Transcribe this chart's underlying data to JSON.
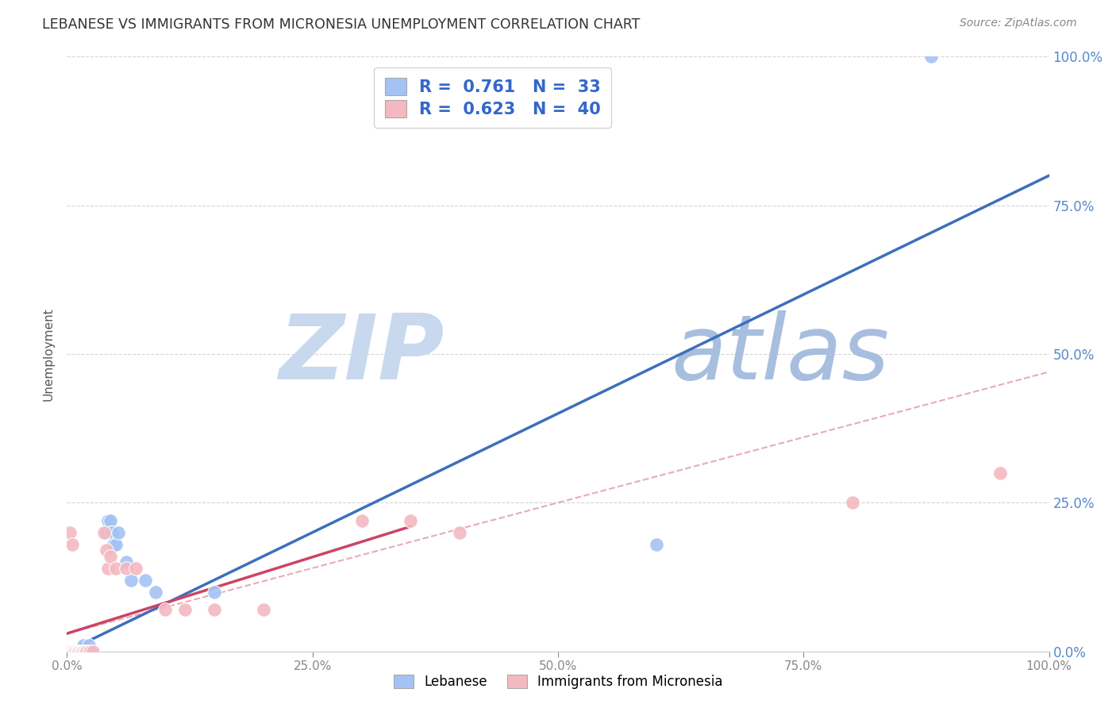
{
  "title": "LEBANESE VS IMMIGRANTS FROM MICRONESIA UNEMPLOYMENT CORRELATION CHART",
  "source": "Source: ZipAtlas.com",
  "ylabel": "Unemployment",
  "ytick_labels": [
    "0.0%",
    "25.0%",
    "50.0%",
    "75.0%",
    "100.0%"
  ],
  "ytick_values": [
    0,
    0.25,
    0.5,
    0.75,
    1.0
  ],
  "xtick_labels": [
    "0.0%",
    "25.0%",
    "50.0%",
    "75.0%",
    "100.0%"
  ],
  "xtick_values": [
    0,
    0.25,
    0.5,
    0.75,
    1.0
  ],
  "legend1_R": "0.761",
  "legend1_N": "33",
  "legend2_R": "0.623",
  "legend2_N": "40",
  "legend1_label": "Lebanese",
  "legend2_label": "Immigrants from Micronesia",
  "blue_scatter_color": "#a4c2f4",
  "pink_scatter_color": "#f4b8c1",
  "blue_line_color": "#3d6fbb",
  "pink_line_color": "#cc4466",
  "pink_dashed_color": "#dd8899",
  "blue_scatter": [
    [
      0.002,
      0.0
    ],
    [
      0.004,
      0.0
    ],
    [
      0.005,
      0.0
    ],
    [
      0.006,
      0.0
    ],
    [
      0.007,
      0.0
    ],
    [
      0.008,
      0.0
    ],
    [
      0.009,
      0.0
    ],
    [
      0.01,
      0.0
    ],
    [
      0.012,
      0.0
    ],
    [
      0.013,
      0.0
    ],
    [
      0.014,
      0.0
    ],
    [
      0.015,
      0.0
    ],
    [
      0.016,
      0.0
    ],
    [
      0.017,
      0.01
    ],
    [
      0.018,
      0.0
    ],
    [
      0.02,
      0.0
    ],
    [
      0.022,
      0.01
    ],
    [
      0.024,
      0.0
    ],
    [
      0.04,
      0.2
    ],
    [
      0.042,
      0.22
    ],
    [
      0.044,
      0.22
    ],
    [
      0.045,
      0.2
    ],
    [
      0.046,
      0.2
    ],
    [
      0.047,
      0.18
    ],
    [
      0.05,
      0.18
    ],
    [
      0.052,
      0.2
    ],
    [
      0.06,
      0.15
    ],
    [
      0.065,
      0.12
    ],
    [
      0.08,
      0.12
    ],
    [
      0.09,
      0.1
    ],
    [
      0.15,
      0.1
    ],
    [
      0.6,
      0.18
    ],
    [
      0.88,
      1.0
    ]
  ],
  "pink_scatter": [
    [
      0.002,
      0.0
    ],
    [
      0.003,
      0.0
    ],
    [
      0.004,
      0.0
    ],
    [
      0.005,
      0.0
    ],
    [
      0.006,
      0.0
    ],
    [
      0.007,
      0.0
    ],
    [
      0.008,
      0.0
    ],
    [
      0.009,
      0.0
    ],
    [
      0.01,
      0.0
    ],
    [
      0.011,
      0.0
    ],
    [
      0.012,
      0.0
    ],
    [
      0.013,
      0.0
    ],
    [
      0.014,
      0.0
    ],
    [
      0.015,
      0.0
    ],
    [
      0.016,
      0.0
    ],
    [
      0.017,
      0.0
    ],
    [
      0.018,
      0.0
    ],
    [
      0.019,
      0.0
    ],
    [
      0.02,
      0.0
    ],
    [
      0.022,
      0.0
    ],
    [
      0.024,
      0.0
    ],
    [
      0.026,
      0.0
    ],
    [
      0.038,
      0.2
    ],
    [
      0.04,
      0.17
    ],
    [
      0.042,
      0.14
    ],
    [
      0.044,
      0.16
    ],
    [
      0.05,
      0.14
    ],
    [
      0.06,
      0.14
    ],
    [
      0.07,
      0.14
    ],
    [
      0.1,
      0.07
    ],
    [
      0.12,
      0.07
    ],
    [
      0.15,
      0.07
    ],
    [
      0.2,
      0.07
    ],
    [
      0.3,
      0.22
    ],
    [
      0.35,
      0.22
    ],
    [
      0.4,
      0.2
    ],
    [
      0.8,
      0.25
    ],
    [
      0.95,
      0.3
    ],
    [
      0.003,
      0.2
    ],
    [
      0.005,
      0.18
    ]
  ],
  "blue_line_full": [
    [
      0.0,
      0.0
    ],
    [
      1.0,
      0.8
    ]
  ],
  "pink_line_solid": [
    [
      0.0,
      0.03
    ],
    [
      0.35,
      0.21
    ]
  ],
  "pink_line_dashed": [
    [
      0.0,
      0.03
    ],
    [
      1.0,
      0.47
    ]
  ],
  "watermark_zip": "ZIP",
  "watermark_atlas": "atlas",
  "watermark_zip_color": "#c8d8ee",
  "watermark_atlas_color": "#a8bede",
  "background_color": "#ffffff",
  "grid_color": "#cccccc"
}
